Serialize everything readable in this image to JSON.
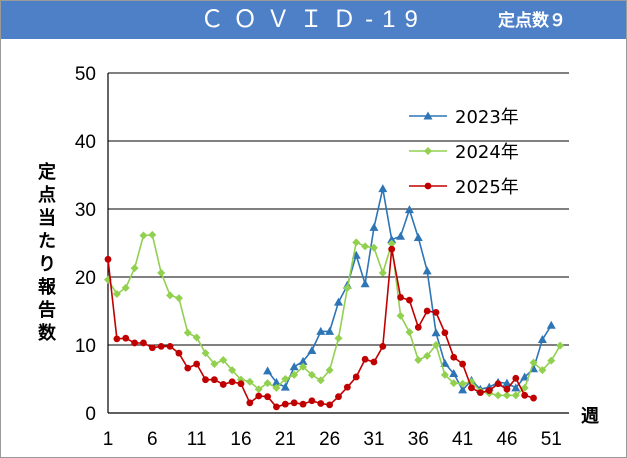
{
  "header": {
    "title": "ＣＯＶＩＤ-19",
    "subtitle": "定点数９",
    "bar_color": "#4e80c8"
  },
  "chart_data": {
    "type": "line",
    "ylabel": "定点当たり報告数",
    "xlabel": "週",
    "xlim": [
      1,
      53
    ],
    "ylim": [
      0,
      50
    ],
    "x_ticks": [
      1,
      6,
      11,
      16,
      21,
      26,
      31,
      36,
      41,
      46,
      51
    ],
    "y_ticks": [
      0,
      10,
      20,
      30,
      40,
      50
    ],
    "grid": "horizontal",
    "legend_position": "top-right",
    "series": [
      {
        "name": "2023年",
        "color": "#2e75b6",
        "marker": "triangle",
        "start_week": 19,
        "values": [
          6.2,
          4.5,
          3.8,
          6.8,
          7.6,
          9.2,
          12.0,
          12.0,
          16.3,
          18.8,
          23.2,
          19.0,
          27.3,
          33.0,
          25.5,
          26.0,
          29.9,
          25.8,
          20.9,
          11.8,
          7.3,
          5.8,
          3.4,
          4.8,
          3.5,
          3.8,
          4.5,
          4.4,
          3.7,
          5.3,
          6.5,
          10.8,
          12.9
        ]
      },
      {
        "name": "2024年",
        "color": "#92d050",
        "marker": "diamond",
        "start_week": 1,
        "values": [
          19.6,
          17.5,
          18.4,
          21.3,
          26.1,
          26.2,
          20.6,
          17.3,
          16.9,
          11.8,
          11.1,
          8.8,
          7.2,
          7.8,
          6.3,
          4.9,
          4.6,
          3.5,
          4.4,
          3.7,
          5.0,
          5.6,
          6.8,
          5.6,
          4.8,
          6.3,
          11.0,
          18.4,
          25.1,
          24.5,
          24.3,
          20.6,
          24.9,
          14.3,
          11.9,
          7.8,
          8.4,
          10.0,
          5.6,
          4.4,
          4.3,
          4.6,
          3.2,
          2.9,
          2.6,
          2.6,
          2.6,
          3.7,
          7.4,
          6.3,
          7.7,
          9.9
        ]
      },
      {
        "name": "2025年",
        "color": "#c00000",
        "marker": "circle",
        "start_week": 1,
        "values": [
          22.6,
          10.9,
          11.0,
          10.3,
          10.3,
          9.6,
          9.8,
          9.8,
          8.8,
          6.6,
          7.2,
          4.9,
          4.9,
          4.2,
          4.6,
          4.3,
          1.5,
          2.5,
          2.4,
          0.9,
          1.3,
          1.5,
          1.3,
          1.8,
          1.4,
          1.2,
          2.4,
          3.8,
          5.3,
          7.9,
          7.5,
          9.8,
          24.1,
          17.0,
          16.6,
          12.6,
          15.0,
          14.8,
          11.8,
          8.2,
          7.2,
          3.7,
          3.0,
          3.3,
          4.3,
          3.5,
          5.1,
          2.6,
          2.2
        ]
      }
    ]
  }
}
